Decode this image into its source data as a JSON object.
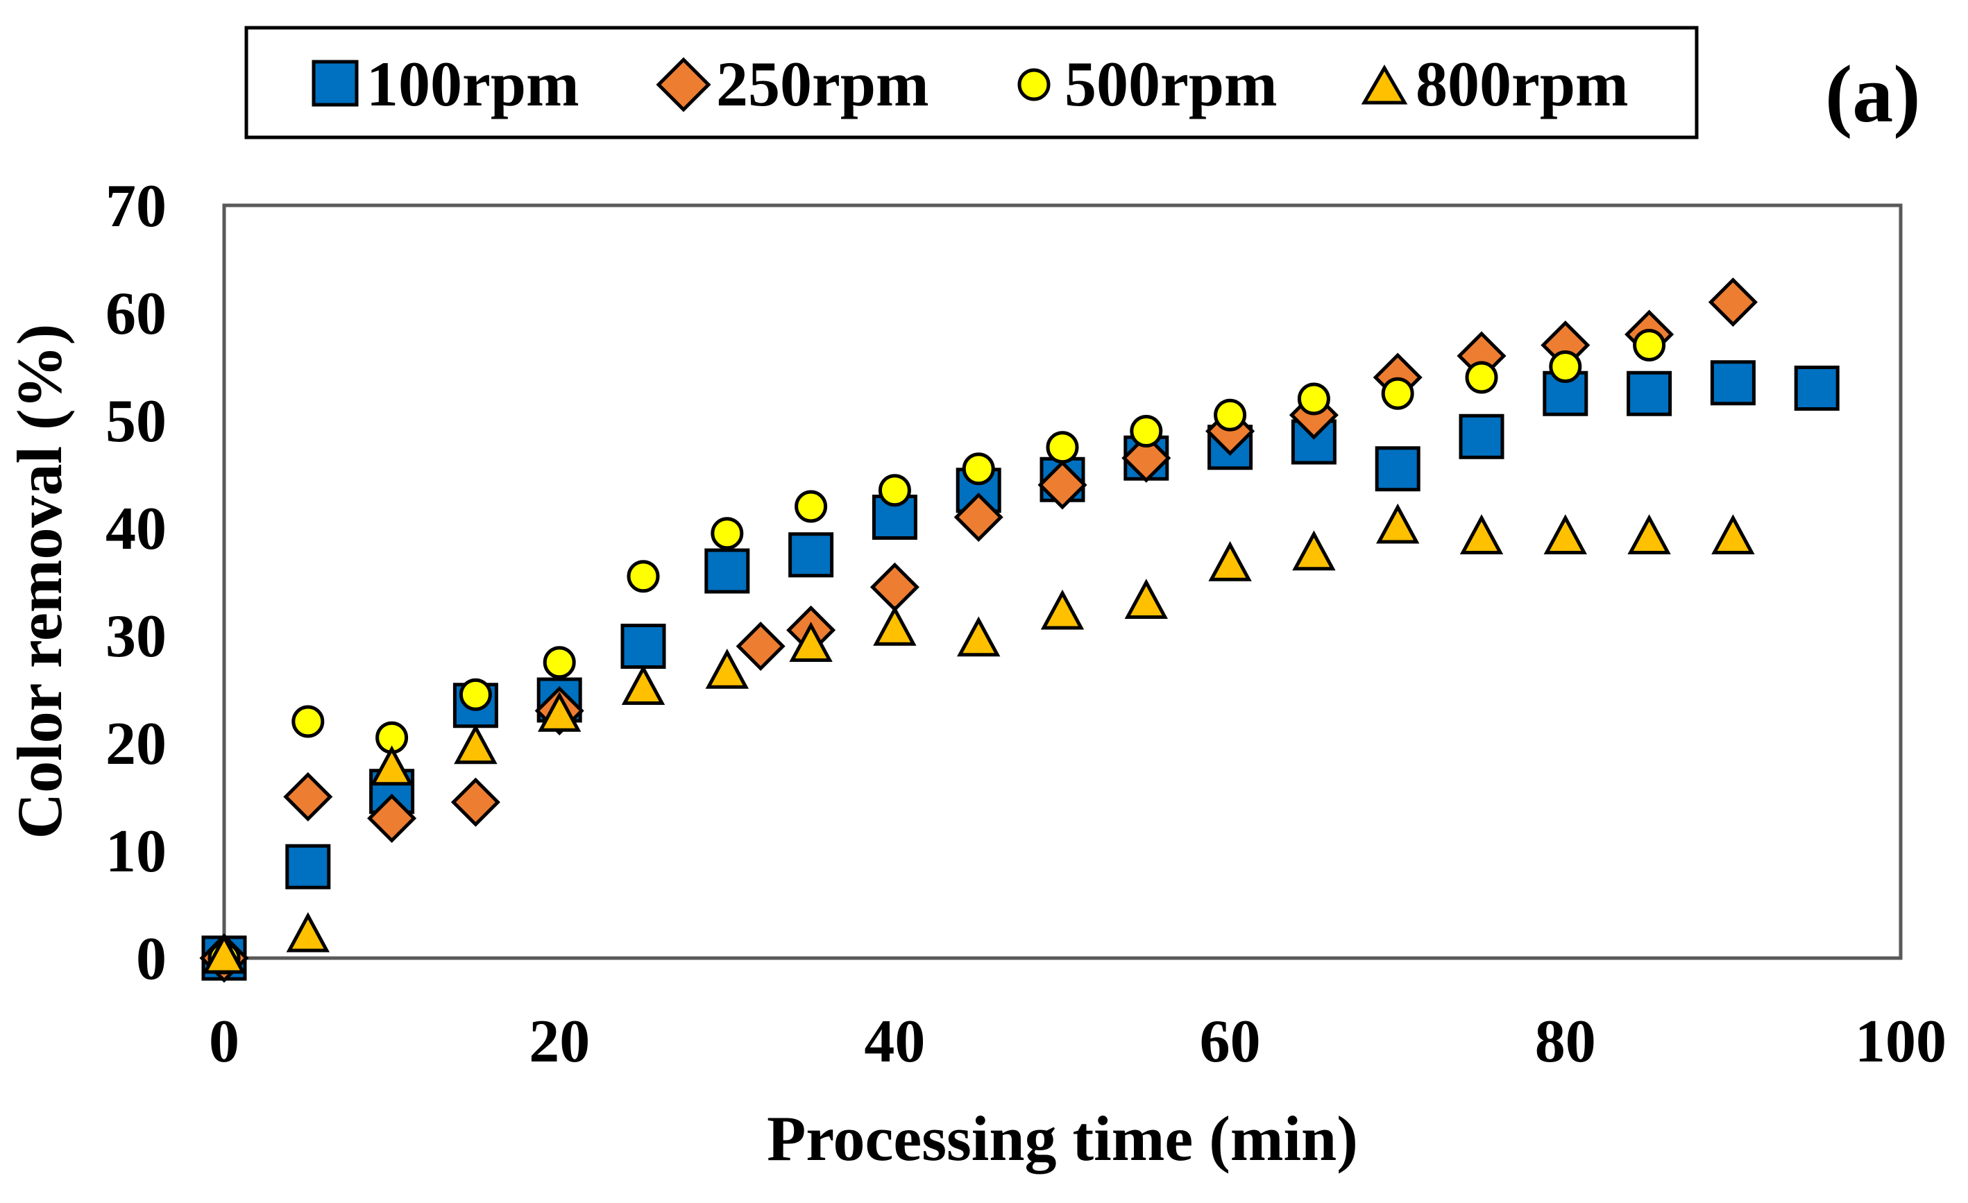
{
  "chart_data": {
    "type": "scatter",
    "panel_label": "(a)",
    "title": "",
    "xlabel": "Processing time (min)",
    "ylabel": "Color removal (%)",
    "xlim": [
      0,
      100
    ],
    "ylim": [
      0,
      70
    ],
    "xticks": [
      "0",
      "20",
      "40",
      "60",
      "80",
      "100"
    ],
    "yticks": [
      "0",
      "10",
      "20",
      "30",
      "40",
      "50",
      "60",
      "70"
    ],
    "grid": false,
    "legend_position": "top",
    "series": [
      {
        "name": "100rpm",
        "marker": "square",
        "color": "#0070C0",
        "x": [
          0,
          5,
          10,
          15,
          20,
          25,
          30,
          35,
          40,
          45,
          50,
          55,
          60,
          65,
          70,
          75,
          80,
          85,
          90,
          95
        ],
        "y": [
          0,
          8.5,
          15.5,
          23.5,
          24,
          29,
          36,
          37.5,
          41,
          43.5,
          44.5,
          46.5,
          47.5,
          48,
          45.5,
          48.5,
          52.5,
          52.5,
          53.5,
          53
        ]
      },
      {
        "name": "250rpm",
        "marker": "diamond",
        "color": "#ED7D31",
        "x": [
          0,
          5,
          10,
          15,
          20,
          32,
          35,
          40,
          45,
          50,
          55,
          60,
          65,
          70,
          75,
          80,
          85,
          90
        ],
        "y": [
          0,
          15,
          13,
          14.5,
          23,
          29,
          30.5,
          34.5,
          41,
          44,
          46.5,
          49,
          50.5,
          54,
          56,
          57,
          58,
          61
        ]
      },
      {
        "name": "500rpm",
        "marker": "circle",
        "color": "#FFFF00",
        "x": [
          0,
          5,
          10,
          15,
          20,
          25,
          30,
          35,
          40,
          45,
          50,
          55,
          60,
          65,
          70,
          75,
          80,
          85
        ],
        "y": [
          0,
          22,
          20.5,
          24.5,
          27.5,
          35.5,
          39.5,
          42,
          43.5,
          45.5,
          47.5,
          49,
          50.5,
          52,
          52.5,
          54,
          55,
          57
        ]
      },
      {
        "name": "800rpm",
        "marker": "triangle",
        "color": "#FFC000",
        "x": [
          0,
          5,
          10,
          15,
          20,
          25,
          30,
          35,
          40,
          45,
          50,
          55,
          60,
          65,
          70,
          75,
          80,
          85,
          90
        ],
        "y": [
          0,
          2,
          17.5,
          19.5,
          22.5,
          25,
          26.5,
          29,
          30.5,
          29.5,
          32,
          33,
          36.5,
          37.5,
          40,
          39,
          39,
          39,
          39
        ]
      }
    ]
  }
}
